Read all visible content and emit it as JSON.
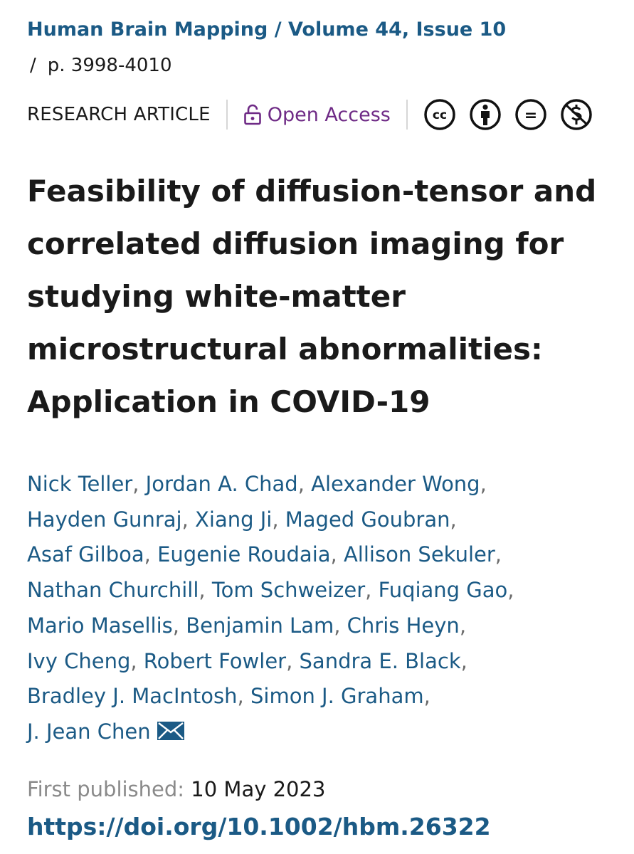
{
  "breadcrumb": {
    "journal_issue": "Human Brain Mapping / Volume 44, Issue 10",
    "slash": "/",
    "pages": "p. 3998-4010"
  },
  "meta": {
    "article_type": "RESEARCH ARTICLE",
    "open_access": "Open Access",
    "license_icons": [
      "cc-icon",
      "by-attribution-icon",
      "no-derivatives-icon",
      "non-commercial-icon"
    ],
    "license_cc_text": "cc",
    "license_nd_text": "="
  },
  "title_lines": [
    "Feasibility of diffusion-tensor and",
    "correlated diffusion imaging for",
    "studying white-matter",
    "microstructural abnormalities:",
    "Application in COVID-19"
  ],
  "authors": [
    "Nick Teller",
    "Jordan A. Chad",
    "Alexander Wong",
    "Hayden Gunraj",
    "Xiang Ji",
    "Maged Goubran",
    "Asaf Gilboa",
    "Eugenie Roudaia",
    "Allison Sekuler",
    "Nathan Churchill",
    "Tom Schweizer",
    "Fuqiang Gao",
    "Mario Masellis",
    "Benjamin Lam",
    "Chris Heyn",
    "Ivy Cheng",
    "Robert Fowler",
    "Sandra E. Black",
    "Bradley J. MacIntosh",
    "Simon J. Graham",
    "J. Jean Chen"
  ],
  "author_separator": ",",
  "published": {
    "label": "First published:",
    "date": "10 May 2023"
  },
  "doi": "https://doi.org/10.1002/hbm.26322",
  "colors": {
    "link": "#1b5a85",
    "open_access": "#6f2b86",
    "muted": "#8a8a8a"
  }
}
